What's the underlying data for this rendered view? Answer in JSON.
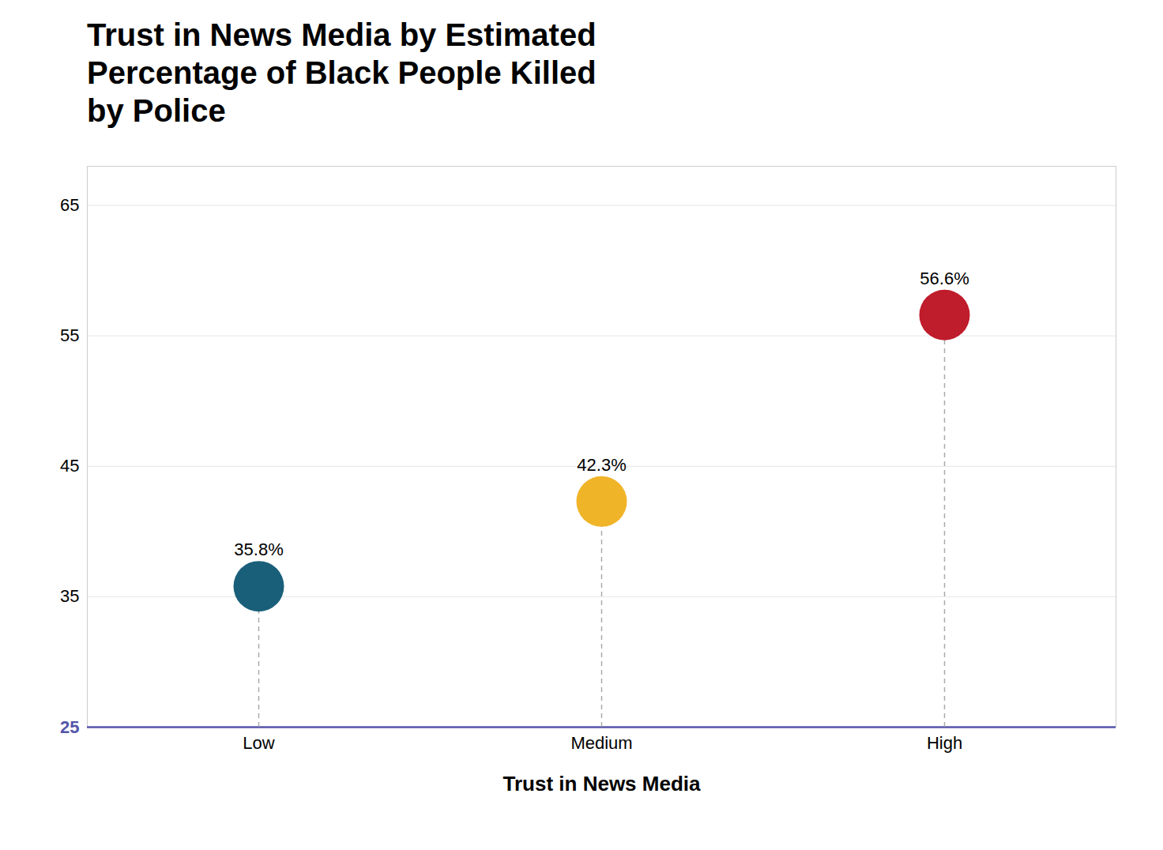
{
  "chart_data": {
    "type": "lollipop",
    "title": "Trust in News Media by Estimated\nPercentage of Black People Killed\nby Police",
    "xlabel": "Trust in News Media",
    "categories": [
      "Low",
      "Medium",
      "High"
    ],
    "values": [
      35.8,
      42.3,
      56.6
    ],
    "value_labels": [
      "35.8%",
      "42.3%",
      "56.6%"
    ],
    "colors": [
      "#1a5f7a",
      "#f0b429",
      "#bf1c2c"
    ],
    "ylim": [
      25,
      68
    ],
    "yticks": [
      25,
      35,
      45,
      55,
      65
    ],
    "grid": true,
    "data_labels": true
  }
}
